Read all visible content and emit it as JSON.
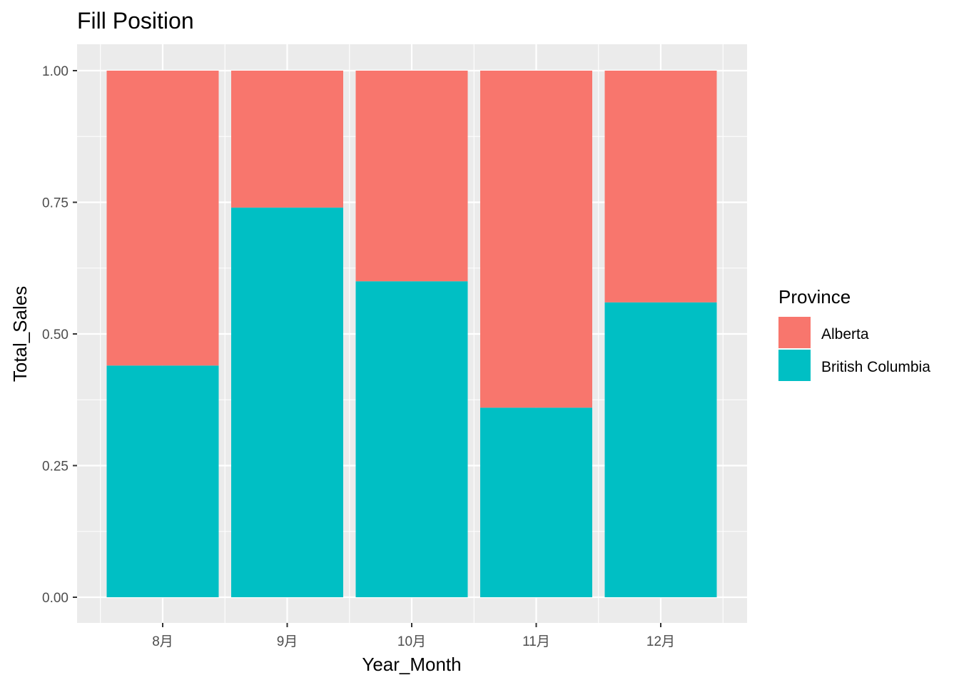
{
  "chart_data": {
    "type": "bar",
    "stacked": true,
    "position": "fill",
    "title": "Fill Position",
    "xlabel": "Year_Month",
    "ylabel": "Total_Sales",
    "categories": [
      "8月",
      "9月",
      "10月",
      "11月",
      "12月"
    ],
    "ylim": [
      0,
      1
    ],
    "yticks": [
      0.0,
      0.25,
      0.5,
      0.75,
      1.0
    ],
    "ytick_labels": [
      "0.00",
      "0.25",
      "0.50",
      "0.75",
      "1.00"
    ],
    "series": [
      {
        "name": "British Columbia",
        "color": "#00BFC4",
        "values": [
          0.44,
          0.74,
          0.6,
          0.36,
          0.56
        ]
      },
      {
        "name": "Alberta",
        "color": "#F8766D",
        "values": [
          0.56,
          0.26,
          0.4,
          0.64,
          0.44
        ]
      }
    ],
    "grid": true,
    "panel_background": "#EBEBEB",
    "legend": {
      "title": "Province",
      "placement": "right",
      "entries": [
        {
          "label": "Alberta",
          "color": "#F8766D"
        },
        {
          "label": "British Columbia",
          "color": "#00BFC4"
        }
      ]
    }
  }
}
